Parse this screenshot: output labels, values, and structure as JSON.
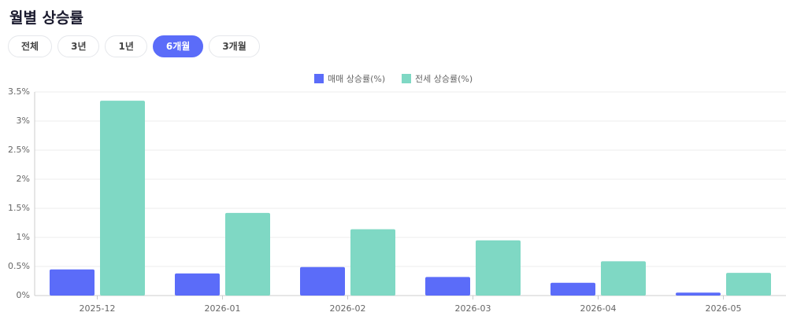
{
  "header": {
    "title": "월별 상승률"
  },
  "tabs": {
    "items": [
      "전체",
      "3년",
      "1년",
      "6개월",
      "3개월"
    ],
    "active": 3
  },
  "chart_data": {
    "type": "bar",
    "categories": [
      "2025-12",
      "2026-01",
      "2026-02",
      "2026-03",
      "2026-04",
      "2026-05"
    ],
    "series": [
      {
        "name": "매매 상승률(%)",
        "color": "#5b6cf9",
        "values": [
          0.45,
          0.38,
          0.49,
          0.32,
          0.22,
          0.05
        ]
      },
      {
        "name": "전세 상승률(%)",
        "color": "#7fd8c4",
        "values": [
          3.35,
          1.42,
          1.14,
          0.95,
          0.59,
          0.39
        ]
      }
    ],
    "ylim": [
      0,
      3.5
    ],
    "yticks": [
      {
        "value": 0,
        "label": "0%"
      },
      {
        "value": 0.5,
        "label": "0.5%"
      },
      {
        "value": 1,
        "label": "1%"
      },
      {
        "value": 1.5,
        "label": "1.5%"
      },
      {
        "value": 2,
        "label": "2%"
      },
      {
        "value": 2.5,
        "label": "2.5%"
      },
      {
        "value": 3,
        "label": "3%"
      },
      {
        "value": 3.5,
        "label": "3.5%"
      }
    ],
    "grid": true,
    "legend": "top"
  }
}
